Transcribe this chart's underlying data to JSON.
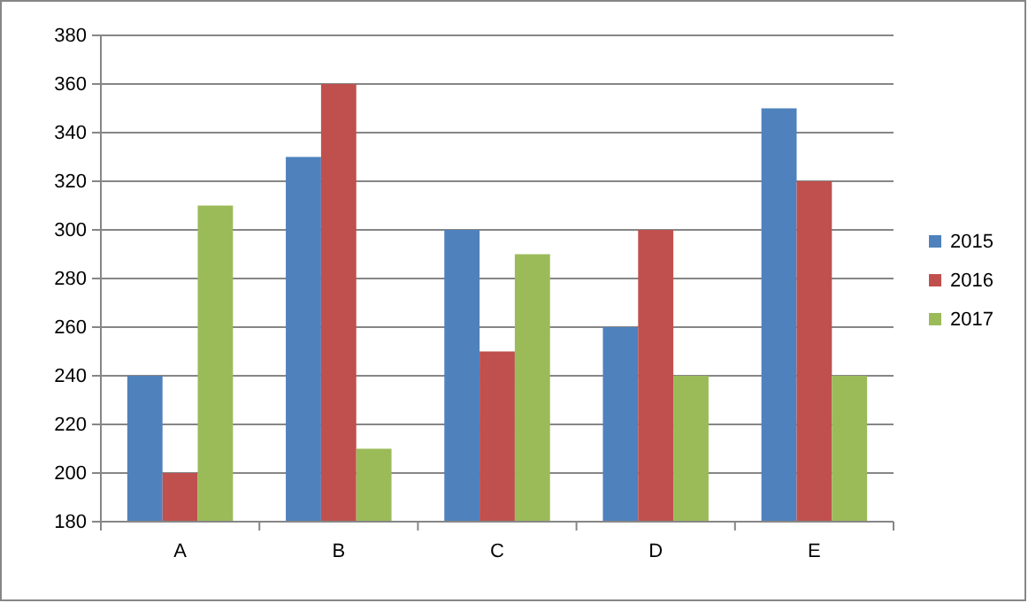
{
  "chart_data": {
    "type": "bar",
    "categories": [
      "A",
      "B",
      "C",
      "D",
      "E"
    ],
    "series": [
      {
        "name": "2015",
        "color": "#4f81bd",
        "values": [
          240,
          330,
          300,
          260,
          350
        ]
      },
      {
        "name": "2016",
        "color": "#c0504d",
        "values": [
          200,
          360,
          250,
          300,
          320
        ]
      },
      {
        "name": "2017",
        "color": "#9bbb59",
        "values": [
          310,
          210,
          290,
          240,
          240
        ]
      }
    ],
    "ylim": [
      180,
      380
    ],
    "yticks": [
      180,
      200,
      220,
      240,
      260,
      280,
      300,
      320,
      340,
      360,
      380
    ],
    "grid": "y",
    "legend": "right"
  }
}
